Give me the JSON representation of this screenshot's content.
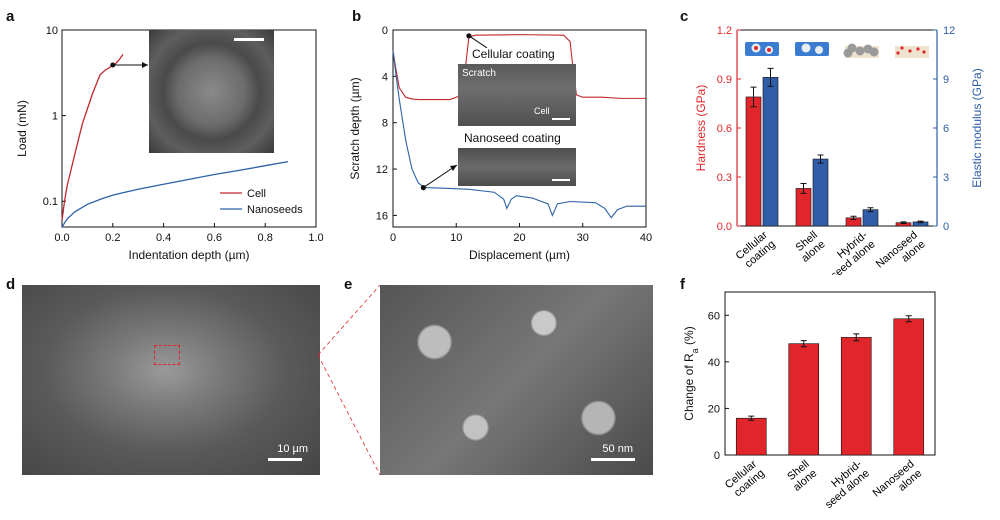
{
  "panels": {
    "a": {
      "letter": "a",
      "xlabel": "Indentation depth (µm)",
      "ylabel": "Load (mN)",
      "legend": [
        "Cell",
        "Nanoseeds"
      ]
    },
    "b": {
      "letter": "b",
      "xlabel": "Displacement (µm)",
      "ylabel": "Scratch depth (µm)",
      "inset_title_top": "Cellular coating",
      "inset_title_bottom": "Nanoseed coating",
      "inset_label_scratch": "Scratch",
      "inset_label_cell": "Cell"
    },
    "c": {
      "letter": "c",
      "ylabel_left": "Hardness (GPa)",
      "ylabel_right": "Elastic modulus (GPa)"
    },
    "d": {
      "letter": "d",
      "scalebar": "10 µm"
    },
    "e": {
      "letter": "e",
      "scalebar": "50 nm"
    },
    "f": {
      "letter": "f",
      "ylabel_main": "Change of R",
      "ylabel_sub": "a",
      "ylabel_tail": " (%)"
    }
  },
  "colors": {
    "red": "#e0262b",
    "blue": "#2f5da8",
    "cell_line": "#c0282d",
    "nano_line": "#2d62a6"
  },
  "chart_data": [
    {
      "id": "a",
      "type": "line",
      "xlabel": "Indentation depth (µm)",
      "ylabel": "Load (mN)",
      "xlim": [
        0,
        1.0
      ],
      "ylim": [
        0.05,
        10
      ],
      "yscale": "log",
      "xticks": [
        "0.0",
        "0.2",
        "0.4",
        "0.6",
        "0.8",
        "1.0"
      ],
      "yticks": [
        "0.1",
        "1",
        "10"
      ],
      "legend_position": "bottom-right",
      "series": [
        {
          "name": "Cell",
          "x": [
            0.0,
            0.01,
            0.02,
            0.05,
            0.08,
            0.12,
            0.15,
            0.17,
            0.185,
            0.2,
            0.21,
            0.225,
            0.24
          ],
          "y": [
            0.06,
            0.1,
            0.15,
            0.35,
            0.8,
            1.8,
            3.0,
            3.4,
            3.6,
            3.9,
            4.0,
            4.5,
            5.2
          ]
        },
        {
          "name": "Nanoseeds",
          "x": [
            0.0,
            0.02,
            0.05,
            0.1,
            0.15,
            0.2,
            0.3,
            0.4,
            0.5,
            0.6,
            0.7,
            0.8,
            0.89
          ],
          "y": [
            0.05,
            0.062,
            0.075,
            0.092,
            0.105,
            0.118,
            0.138,
            0.158,
            0.18,
            0.205,
            0.23,
            0.26,
            0.29
          ]
        }
      ]
    },
    {
      "id": "b",
      "type": "line",
      "xlabel": "Displacement (µm)",
      "ylabel": "Scratch depth (µm)",
      "xlim": [
        0,
        40
      ],
      "ylim": [
        0,
        17
      ],
      "y_inverted": true,
      "xticks": [
        "0",
        "10",
        "20",
        "30",
        "40"
      ],
      "yticks": [
        "0",
        "4",
        "8",
        "12",
        "16"
      ],
      "series": [
        {
          "name": "",
          "x": [
            0,
            0.5,
            1,
            2,
            3,
            4,
            6,
            9,
            11,
            11.5,
            12,
            13,
            20,
            27,
            28,
            28.5,
            29,
            30,
            33,
            36,
            40
          ],
          "y": [
            1.8,
            3.5,
            5.0,
            5.8,
            5.95,
            6.0,
            6.0,
            6.0,
            5.6,
            3.0,
            0.6,
            0.45,
            0.4,
            0.45,
            1.0,
            3.5,
            5.6,
            5.8,
            5.8,
            5.9,
            5.9
          ]
        },
        {
          "name": "",
          "x": [
            0,
            0.5,
            1,
            2,
            3,
            4,
            5,
            8,
            12,
            16,
            17.5,
            18,
            18.7,
            19.5,
            22,
            24.5,
            25.2,
            26,
            28,
            32,
            33.5,
            34.5,
            35.5,
            37,
            40
          ],
          "y": [
            1.8,
            4.0,
            6.0,
            9.5,
            12.0,
            13.2,
            13.6,
            13.65,
            13.75,
            14.0,
            14.6,
            15.4,
            14.6,
            14.3,
            14.5,
            15.0,
            16.0,
            15.0,
            14.8,
            14.9,
            15.4,
            16.2,
            15.5,
            15.2,
            15.2
          ]
        }
      ]
    },
    {
      "id": "c",
      "type": "bar",
      "categories": [
        [
          "Cellular",
          "coating"
        ],
        [
          "Shell",
          "alone"
        ],
        [
          "Hybrid-",
          "seed alone"
        ],
        [
          "Nanoseed",
          "alone"
        ]
      ],
      "ylabel": "Hardness (GPa)",
      "ylabel_right": "Elastic modulus (GPa)",
      "ylim": [
        0,
        1.2
      ],
      "ylim_right": [
        0,
        12
      ],
      "yticks": [
        "0.0",
        "0.3",
        "0.6",
        "0.9",
        "1.2"
      ],
      "yticks_right": [
        "0",
        "3",
        "6",
        "9",
        "12"
      ],
      "series": [
        {
          "name": "Hardness (GPa)",
          "axis": "left",
          "values": [
            0.79,
            0.23,
            0.05,
            0.02
          ],
          "errors": [
            0.06,
            0.03,
            0.01,
            0.005
          ]
        },
        {
          "name": "Elastic modulus (GPa)",
          "axis": "right",
          "values": [
            9.1,
            4.1,
            1.0,
            0.25
          ],
          "errors": [
            0.55,
            0.25,
            0.12,
            0.05
          ]
        }
      ]
    },
    {
      "id": "f",
      "type": "bar",
      "categories": [
        [
          "Cellular",
          "coating"
        ],
        [
          "Shell",
          "alone"
        ],
        [
          "Hybrid-",
          "seed alone"
        ],
        [
          "Nanoseed",
          "alone"
        ]
      ],
      "ylabel": "Change of Ra (%)",
      "ylim": [
        0,
        70
      ],
      "yticks": [
        "0",
        "20",
        "40",
        "60"
      ],
      "series": [
        {
          "values": [
            15.8,
            47.8,
            50.5,
            58.5
          ],
          "errors": [
            0.9,
            1.3,
            1.5,
            1.3
          ]
        }
      ]
    }
  ]
}
